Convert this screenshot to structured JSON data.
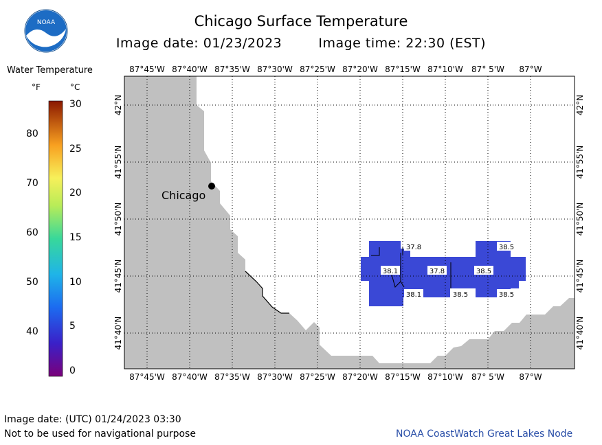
{
  "header": {
    "title": "Chicago Surface Temperature",
    "image_date": "Image date: 01/23/2023",
    "image_time": "Image time: 22:30 (EST)"
  },
  "logo": {
    "text": "NOAA",
    "icon": "noaa-logo-icon"
  },
  "legend": {
    "title": "Water Temperature",
    "unit_f": "°F",
    "unit_c": "°C",
    "f_ticks": [
      "80",
      "70",
      "60",
      "50",
      "40"
    ],
    "c_ticks": [
      "30",
      "25",
      "20",
      "15",
      "10",
      "5",
      "0"
    ],
    "f_values": [
      80,
      70,
      60,
      50,
      40
    ],
    "c_values": [
      30,
      25,
      20,
      15,
      10,
      5,
      0
    ]
  },
  "map": {
    "lon_labels": [
      "87°45'W",
      "87°40'W",
      "87°35'W",
      "87°30'W",
      "87°25'W",
      "87°20'W",
      "87°15'W",
      "87°10'W",
      "87° 5'W",
      "87°W"
    ],
    "lat_labels": [
      "42°N",
      "41°55'N",
      "41°50'N",
      "41°45'N",
      "41°40'N"
    ],
    "city": {
      "name": "Chicago"
    },
    "land_color": "#c0c0c0",
    "water_patch_color": "#3a48d6",
    "temperature_labels": [
      "37.8",
      "38.5",
      "38.1",
      "37.8",
      "38.5",
      "38.1",
      "38.5",
      "38.5"
    ]
  },
  "footer": {
    "utc_date": "Image date: (UTC) 01/24/2023  03:30",
    "disclaimer": "Not to be used for navigational purpose",
    "credit": "NOAA CoastWatch Great Lakes Node"
  }
}
